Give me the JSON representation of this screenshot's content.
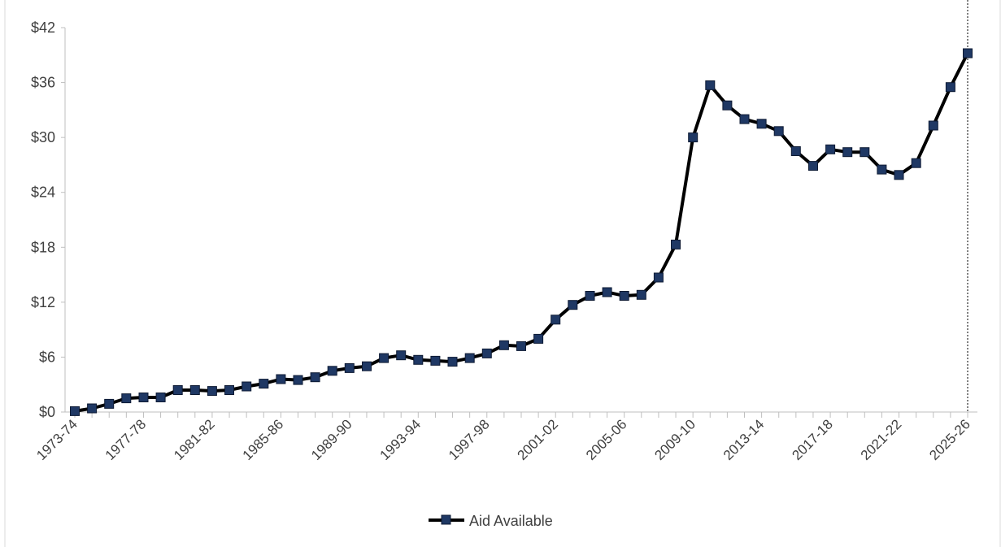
{
  "chart_data": {
    "type": "line",
    "title": "",
    "xlabel": "",
    "ylabel": "",
    "ylim": [
      0,
      42
    ],
    "y_ticks": [
      "$0",
      "$6",
      "$12",
      "$18",
      "$24",
      "$30",
      "$36",
      "$42"
    ],
    "x_tick_labels": [
      "1973-74",
      "1977-78",
      "1981-82",
      "1985-86",
      "1989-90",
      "1993-94",
      "1997-98",
      "2001-02",
      "2005-06",
      "2009-10",
      "2013-14",
      "2017-18",
      "2021-22",
      "2025-26"
    ],
    "x": [
      "1973-74",
      "1974-75",
      "1975-76",
      "1976-77",
      "1977-78",
      "1978-79",
      "1979-80",
      "1980-81",
      "1981-82",
      "1982-83",
      "1983-84",
      "1984-85",
      "1985-86",
      "1986-87",
      "1987-88",
      "1988-89",
      "1989-90",
      "1990-91",
      "1991-92",
      "1992-93",
      "1993-94",
      "1994-95",
      "1995-96",
      "1996-97",
      "1997-98",
      "1998-99",
      "1999-00",
      "2000-01",
      "2001-02",
      "2002-03",
      "2003-04",
      "2004-05",
      "2005-06",
      "2006-07",
      "2007-08",
      "2008-09",
      "2009-10",
      "2010-11",
      "2011-12",
      "2012-13",
      "2013-14",
      "2014-15",
      "2015-16",
      "2016-17",
      "2017-18",
      "2018-19",
      "2019-20",
      "2020-21",
      "2021-22",
      "2022-23",
      "2023-24",
      "2024-25",
      "2025-26"
    ],
    "series": [
      {
        "name": "Aid Available",
        "color": "#000000",
        "marker_color": "#1F3864",
        "values": [
          0.1,
          0.4,
          0.9,
          1.5,
          1.6,
          1.6,
          2.4,
          2.4,
          2.3,
          2.4,
          2.8,
          3.1,
          3.6,
          3.5,
          3.8,
          4.5,
          4.8,
          5.0,
          5.9,
          6.2,
          5.7,
          5.6,
          5.5,
          5.9,
          6.4,
          7.3,
          7.2,
          8.0,
          10.1,
          11.7,
          12.7,
          13.1,
          12.7,
          12.8,
          14.7,
          18.3,
          30.0,
          35.7,
          33.5,
          32.0,
          31.5,
          30.7,
          28.5,
          26.9,
          28.7,
          28.4,
          28.4,
          26.5,
          25.9,
          27.2,
          31.3,
          35.5,
          39.2
        ]
      }
    ],
    "grid": false,
    "legend": "bottom"
  }
}
